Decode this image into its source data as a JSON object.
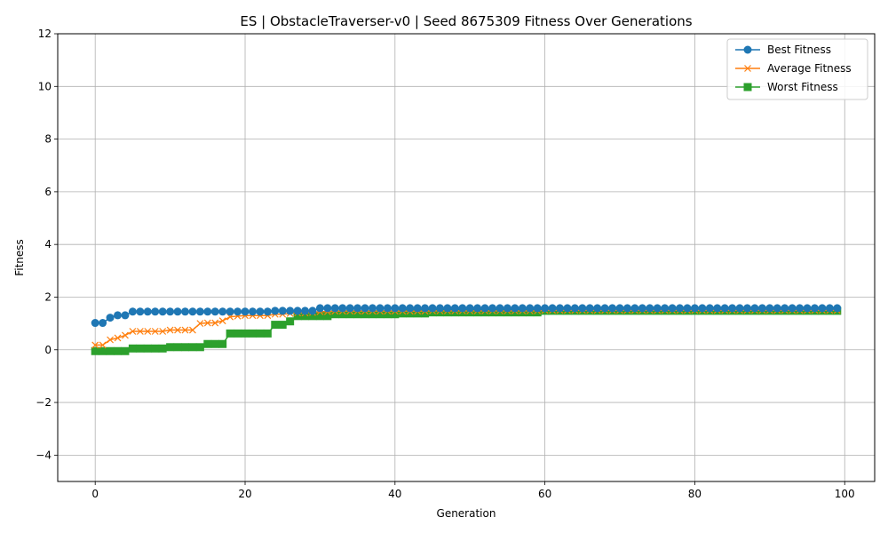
{
  "chart_data": {
    "type": "line",
    "title": "ES | ObstacleTraverser-v0 | Seed 8675309 Fitness Over Generations",
    "xlabel": "Generation",
    "ylabel": "Fitness",
    "xlim": [
      -5,
      104
    ],
    "ylim": [
      -5,
      12
    ],
    "xticks": [
      0,
      20,
      40,
      60,
      80,
      100
    ],
    "yticks": [
      -4,
      -2,
      0,
      2,
      4,
      6,
      8,
      10,
      12
    ],
    "ytick_labels": [
      "−4",
      "−2",
      "0",
      "2",
      "4",
      "6",
      "8",
      "10",
      "12"
    ],
    "grid": true,
    "legend_position": "top-right",
    "x": [
      0,
      1,
      2,
      3,
      4,
      5,
      6,
      7,
      8,
      9,
      10,
      11,
      12,
      13,
      14,
      15,
      16,
      17,
      18,
      19,
      20,
      21,
      22,
      23,
      24,
      25,
      26,
      27,
      28,
      29,
      30,
      31,
      32,
      33,
      34,
      35,
      36,
      37,
      38,
      39,
      40,
      41,
      42,
      43,
      44,
      45,
      46,
      47,
      48,
      49,
      50,
      51,
      52,
      53,
      54,
      55,
      56,
      57,
      58,
      59,
      60,
      61,
      62,
      63,
      64,
      65,
      66,
      67,
      68,
      69,
      70,
      71,
      72,
      73,
      74,
      75,
      76,
      77,
      78,
      79,
      80,
      81,
      82,
      83,
      84,
      85,
      86,
      87,
      88,
      89,
      90,
      91,
      92,
      93,
      94,
      95,
      96,
      97,
      98,
      99
    ],
    "series": [
      {
        "name": "Best Fitness",
        "color": "#1f77b4",
        "marker": "circle",
        "values": [
          1.02,
          1.02,
          1.22,
          1.31,
          1.31,
          1.45,
          1.45,
          1.45,
          1.45,
          1.45,
          1.45,
          1.45,
          1.45,
          1.45,
          1.45,
          1.45,
          1.45,
          1.45,
          1.45,
          1.45,
          1.45,
          1.45,
          1.45,
          1.45,
          1.48,
          1.48,
          1.48,
          1.48,
          1.48,
          1.48,
          1.58,
          1.58,
          1.58,
          1.58,
          1.58,
          1.58,
          1.58,
          1.58,
          1.58,
          1.58,
          1.58,
          1.58,
          1.58,
          1.58,
          1.58,
          1.58,
          1.58,
          1.58,
          1.58,
          1.58,
          1.58,
          1.58,
          1.58,
          1.58,
          1.58,
          1.58,
          1.58,
          1.58,
          1.58,
          1.58,
          1.58,
          1.58,
          1.58,
          1.58,
          1.58,
          1.58,
          1.58,
          1.58,
          1.58,
          1.58,
          1.58,
          1.58,
          1.58,
          1.58,
          1.58,
          1.58,
          1.58,
          1.58,
          1.58,
          1.58,
          1.58,
          1.58,
          1.58,
          1.58,
          1.58,
          1.58,
          1.58,
          1.58,
          1.58,
          1.58,
          1.58,
          1.58,
          1.58,
          1.58,
          1.58,
          1.58,
          1.58,
          1.58,
          1.58,
          1.58
        ]
      },
      {
        "name": "Average Fitness",
        "color": "#ff7f0e",
        "marker": "x",
        "values": [
          0.18,
          0.18,
          0.38,
          0.45,
          0.55,
          0.7,
          0.7,
          0.7,
          0.7,
          0.7,
          0.75,
          0.75,
          0.75,
          0.75,
          1.0,
          1.02,
          1.02,
          1.1,
          1.25,
          1.28,
          1.3,
          1.3,
          1.3,
          1.3,
          1.35,
          1.35,
          1.38,
          1.4,
          1.4,
          1.42,
          1.45,
          1.45,
          1.47,
          1.47,
          1.47,
          1.47,
          1.47,
          1.47,
          1.47,
          1.47,
          1.47,
          1.47,
          1.47,
          1.47,
          1.47,
          1.48,
          1.48,
          1.48,
          1.48,
          1.48,
          1.48,
          1.48,
          1.48,
          1.48,
          1.48,
          1.48,
          1.48,
          1.48,
          1.48,
          1.48,
          1.5,
          1.5,
          1.5,
          1.5,
          1.5,
          1.5,
          1.5,
          1.5,
          1.5,
          1.5,
          1.5,
          1.5,
          1.5,
          1.5,
          1.5,
          1.5,
          1.5,
          1.5,
          1.5,
          1.5,
          1.5,
          1.5,
          1.5,
          1.5,
          1.5,
          1.5,
          1.5,
          1.5,
          1.5,
          1.5,
          1.5,
          1.5,
          1.5,
          1.5,
          1.5,
          1.5,
          1.5,
          1.5,
          1.5,
          1.5
        ]
      },
      {
        "name": "Worst Fitness",
        "color": "#2ca02c",
        "marker": "square",
        "values": [
          -0.05,
          -0.05,
          -0.05,
          -0.05,
          -0.05,
          0.05,
          0.05,
          0.05,
          0.05,
          0.05,
          0.1,
          0.1,
          0.1,
          0.1,
          0.1,
          0.22,
          0.22,
          0.22,
          0.62,
          0.62,
          0.62,
          0.62,
          0.62,
          0.62,
          0.95,
          0.95,
          1.08,
          1.28,
          1.28,
          1.28,
          1.28,
          1.28,
          1.35,
          1.35,
          1.35,
          1.35,
          1.35,
          1.35,
          1.35,
          1.35,
          1.35,
          1.38,
          1.38,
          1.38,
          1.38,
          1.42,
          1.42,
          1.42,
          1.42,
          1.42,
          1.42,
          1.42,
          1.42,
          1.42,
          1.42,
          1.42,
          1.42,
          1.42,
          1.42,
          1.42,
          1.48,
          1.48,
          1.48,
          1.48,
          1.48,
          1.48,
          1.48,
          1.48,
          1.48,
          1.48,
          1.48,
          1.48,
          1.48,
          1.48,
          1.48,
          1.48,
          1.48,
          1.48,
          1.48,
          1.48,
          1.48,
          1.48,
          1.48,
          1.48,
          1.48,
          1.48,
          1.48,
          1.48,
          1.48,
          1.48,
          1.48,
          1.48,
          1.48,
          1.48,
          1.48,
          1.48,
          1.48,
          1.48,
          1.48,
          1.48
        ]
      }
    ]
  }
}
